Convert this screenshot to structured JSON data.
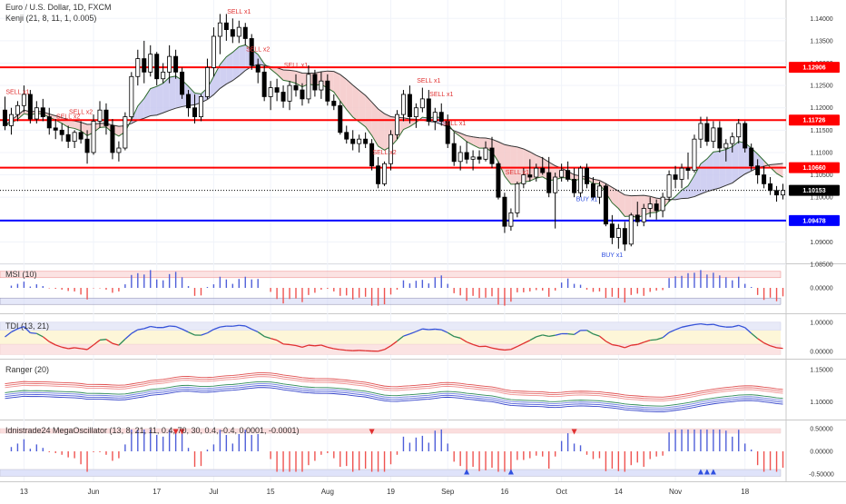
{
  "header": {
    "symbol_line": "Euro / U.S. Dollar, 1D, FXCM",
    "indicator_line": "Kenji (21, 8, 11, 1, 0.005)"
  },
  "panes": {
    "msi_title": "MSI (10)",
    "tdi_title": "TDI (13, 21)",
    "ranger_title": "Ranger (20)",
    "mega_title": "Idnistrade24 MegaOscillator (13, 8, 21, 11, 0.4, 70, 30, 0.4, -0.4, 0.0001, -0.0001)"
  },
  "colors": {
    "up_candle": "#ffffff",
    "down_candle": "#000000",
    "resistance": "#ff0000",
    "support": "#0000ff",
    "bull_cloud": "#c8c8f0",
    "bear_cloud": "#f5c8c8",
    "signal_text": "#e03030",
    "osc_pos": "#4f5fd9",
    "osc_neg": "#ef5350"
  },
  "chart_data": [
    {
      "type": "candlestick",
      "name": "EURUSD 1D",
      "x_labels": [
        "13",
        "Jun",
        "17",
        "Jul",
        "15",
        "Aug",
        "19",
        "Sep",
        "16",
        "Oct",
        "14",
        "Nov",
        "18"
      ],
      "y_ticks": [
        "1.14000",
        "1.13500",
        "1.13000",
        "1.12500",
        "1.12000",
        "1.11500",
        "1.11000",
        "1.10500",
        "1.10000",
        "1.09500",
        "1.09000",
        "1.08500"
      ],
      "ylim": [
        1.0852,
        1.1425
      ],
      "ohlc": [
        [
          1.1195,
          1.1225,
          1.115,
          1.116
        ],
        [
          1.116,
          1.12,
          1.114,
          1.1185
        ],
        [
          1.1185,
          1.1215,
          1.117,
          1.1205
        ],
        [
          1.1205,
          1.125,
          1.119,
          1.123
        ],
        [
          1.123,
          1.124,
          1.1165,
          1.1175
        ],
        [
          1.1175,
          1.1215,
          1.1165,
          1.12
        ],
        [
          1.12,
          1.122,
          1.117,
          1.118
        ],
        [
          1.118,
          1.12,
          1.114,
          1.1155
        ],
        [
          1.1155,
          1.1175,
          1.113,
          1.115
        ],
        [
          1.115,
          1.1165,
          1.1125,
          1.114
        ],
        [
          1.114,
          1.116,
          1.111,
          1.1125
        ],
        [
          1.1125,
          1.115,
          1.111,
          1.1145
        ],
        [
          1.1145,
          1.117,
          1.112,
          1.113
        ],
        [
          1.113,
          1.115,
          1.1075,
          1.11
        ],
        [
          1.11,
          1.1185,
          1.1095,
          1.117
        ],
        [
          1.117,
          1.1215,
          1.1155,
          1.1195
        ],
        [
          1.1195,
          1.121,
          1.114,
          1.116
        ],
        [
          1.116,
          1.1175,
          1.1085,
          1.11
        ],
        [
          1.11,
          1.1125,
          1.108,
          1.111
        ],
        [
          1.111,
          1.119,
          1.1105,
          1.118
        ],
        [
          1.118,
          1.128,
          1.117,
          1.127
        ],
        [
          1.127,
          1.133,
          1.125,
          1.131
        ],
        [
          1.131,
          1.135,
          1.1255,
          1.128
        ],
        [
          1.128,
          1.134,
          1.127,
          1.132
        ],
        [
          1.132,
          1.1325,
          1.125,
          1.1265
        ],
        [
          1.1265,
          1.13,
          1.1255,
          1.128
        ],
        [
          1.128,
          1.134,
          1.1255,
          1.1315
        ],
        [
          1.1315,
          1.133,
          1.1265,
          1.128
        ],
        [
          1.128,
          1.129,
          1.122,
          1.123
        ],
        [
          1.123,
          1.124,
          1.118,
          1.12
        ],
        [
          1.12,
          1.123,
          1.1165,
          1.118
        ],
        [
          1.118,
          1.123,
          1.117,
          1.1225
        ],
        [
          1.1225,
          1.131,
          1.122,
          1.129
        ],
        [
          1.129,
          1.138,
          1.127,
          1.136
        ],
        [
          1.136,
          1.141,
          1.132,
          1.139
        ],
        [
          1.139,
          1.141,
          1.135,
          1.1375
        ],
        [
          1.1375,
          1.14,
          1.1345,
          1.136
        ],
        [
          1.136,
          1.1395,
          1.1345,
          1.138
        ],
        [
          1.138,
          1.139,
          1.134,
          1.1355
        ],
        [
          1.1355,
          1.1365,
          1.1285,
          1.1295
        ],
        [
          1.1295,
          1.131,
          1.1255,
          1.128
        ],
        [
          1.128,
          1.1295,
          1.1215,
          1.1225
        ],
        [
          1.1225,
          1.126,
          1.1195,
          1.1245
        ],
        [
          1.1245,
          1.1265,
          1.1215,
          1.1235
        ],
        [
          1.1235,
          1.125,
          1.12,
          1.1215
        ],
        [
          1.1215,
          1.126,
          1.1195,
          1.125
        ],
        [
          1.125,
          1.1275,
          1.1225,
          1.124
        ],
        [
          1.124,
          1.1255,
          1.1205,
          1.122
        ],
        [
          1.122,
          1.1295,
          1.121,
          1.1275
        ],
        [
          1.1275,
          1.1285,
          1.1225,
          1.124
        ],
        [
          1.124,
          1.128,
          1.122,
          1.126
        ],
        [
          1.126,
          1.1275,
          1.1205,
          1.1215
        ],
        [
          1.1215,
          1.123,
          1.1195,
          1.1205
        ],
        [
          1.1205,
          1.1215,
          1.114,
          1.1145
        ],
        [
          1.1145,
          1.116,
          1.112,
          1.113
        ],
        [
          1.113,
          1.115,
          1.1105,
          1.112
        ],
        [
          1.112,
          1.114,
          1.11,
          1.113
        ],
        [
          1.113,
          1.1145,
          1.111,
          1.112
        ],
        [
          1.112,
          1.113,
          1.106,
          1.107
        ],
        [
          1.107,
          1.109,
          1.102,
          1.103
        ],
        [
          1.103,
          1.108,
          1.1025,
          1.1075
        ],
        [
          1.1075,
          1.115,
          1.106,
          1.114
        ],
        [
          1.114,
          1.1195,
          1.113,
          1.1185
        ],
        [
          1.1185,
          1.124,
          1.117,
          1.123
        ],
        [
          1.123,
          1.125,
          1.1165,
          1.118
        ],
        [
          1.118,
          1.121,
          1.1155,
          1.12
        ],
        [
          1.12,
          1.1245,
          1.119,
          1.122
        ],
        [
          1.122,
          1.124,
          1.116,
          1.117
        ],
        [
          1.117,
          1.12,
          1.115,
          1.119
        ],
        [
          1.119,
          1.121,
          1.116,
          1.117
        ],
        [
          1.117,
          1.1185,
          1.111,
          1.112
        ],
        [
          1.112,
          1.1145,
          1.107,
          1.108
        ],
        [
          1.108,
          1.1115,
          1.106,
          1.11
        ],
        [
          1.11,
          1.1125,
          1.1075,
          1.1085
        ],
        [
          1.1085,
          1.1105,
          1.106,
          1.109
        ],
        [
          1.109,
          1.1105,
          1.1075,
          1.1085
        ],
        [
          1.1085,
          1.1125,
          1.108,
          1.111
        ],
        [
          1.111,
          1.1135,
          1.1065,
          1.1075
        ],
        [
          1.1075,
          1.108,
          1.0995,
          1.1
        ],
        [
          1.1,
          1.101,
          1.092,
          1.0935
        ],
        [
          1.0935,
          1.0975,
          1.0925,
          1.0965
        ],
        [
          1.0965,
          1.1035,
          1.0955,
          1.103
        ],
        [
          1.103,
          1.1065,
          1.102,
          1.105
        ],
        [
          1.105,
          1.1085,
          1.1035,
          1.1045
        ],
        [
          1.1045,
          1.1075,
          1.1035,
          1.1065
        ],
        [
          1.1065,
          1.109,
          1.105,
          1.1055
        ],
        [
          1.1055,
          1.109,
          1.1,
          1.101
        ],
        [
          1.101,
          1.1055,
          1.093,
          1.1045
        ],
        [
          1.1045,
          1.1075,
          1.1035,
          1.106
        ],
        [
          1.106,
          1.108,
          1.1035,
          1.104
        ],
        [
          1.104,
          1.1065,
          1.1,
          1.101
        ],
        [
          1.101,
          1.107,
          1.1,
          1.1065
        ],
        [
          1.1065,
          1.1075,
          1.102,
          1.103
        ],
        [
          1.103,
          1.1045,
          1.0995,
          1.1
        ],
        [
          1.1,
          1.1035,
          1.0985,
          1.1025
        ],
        [
          1.1025,
          1.103,
          1.0935,
          1.094
        ],
        [
          1.094,
          1.096,
          1.0895,
          1.091
        ],
        [
          1.091,
          1.094,
          1.0885,
          1.093
        ],
        [
          1.093,
          1.0945,
          1.088,
          1.0895
        ],
        [
          1.0895,
          1.0965,
          1.089,
          1.096
        ],
        [
          1.096,
          1.099,
          1.0935,
          1.0945
        ],
        [
          1.0945,
          1.0985,
          1.0935,
          1.0975
        ],
        [
          1.0975,
          1.1,
          1.0955,
          1.0985
        ],
        [
          1.0985,
          1.0995,
          1.095,
          1.097
        ],
        [
          1.097,
          1.101,
          1.0955,
          1.1
        ],
        [
          1.1,
          1.106,
          1.099,
          1.105
        ],
        [
          1.105,
          1.107,
          1.102,
          1.104
        ],
        [
          1.104,
          1.1075,
          1.102,
          1.1065
        ],
        [
          1.1065,
          1.11,
          1.104,
          1.106
        ],
        [
          1.106,
          1.114,
          1.1055,
          1.113
        ],
        [
          1.113,
          1.118,
          1.111,
          1.1165
        ],
        [
          1.1165,
          1.118,
          1.1115,
          1.1125
        ],
        [
          1.1125,
          1.117,
          1.111,
          1.1155
        ],
        [
          1.1155,
          1.117,
          1.11,
          1.111
        ],
        [
          1.111,
          1.113,
          1.108,
          1.112
        ],
        [
          1.112,
          1.1145,
          1.11,
          1.1135
        ],
        [
          1.1135,
          1.1175,
          1.112,
          1.1165
        ],
        [
          1.1165,
          1.117,
          1.11,
          1.111
        ],
        [
          1.111,
          1.112,
          1.106,
          1.107
        ],
        [
          1.107,
          1.1085,
          1.103,
          1.105
        ],
        [
          1.105,
          1.107,
          1.102,
          1.103
        ],
        [
          1.103,
          1.1045,
          1.1005,
          1.1015
        ],
        [
          1.1015,
          1.1025,
          1.099,
          1.1005
        ],
        [
          1.1005,
          1.103,
          1.0995,
          1.1015
        ]
      ],
      "levels": [
        {
          "label": "1.12906",
          "value": 1.12906,
          "color": "#ff0000"
        },
        {
          "label": "1.11726",
          "value": 1.11726,
          "color": "#ff0000"
        },
        {
          "label": "1.10660",
          "value": 1.1066,
          "color": "#ff0000"
        },
        {
          "label": "1.10153",
          "value": 1.10153,
          "color": "#000000"
        },
        {
          "label": "1.09478",
          "value": 1.09478,
          "color": "#0000ff"
        }
      ],
      "signals": [
        {
          "text": "SELL x1",
          "bar": 2
        },
        {
          "text": "SELL x2",
          "bar": 10
        },
        {
          "text": "SELL x2",
          "bar": 12
        },
        {
          "text": "SELL x1",
          "bar": 37
        },
        {
          "text": "SELL x2",
          "bar": 40
        },
        {
          "text": "SELL x1",
          "bar": 46
        },
        {
          "text": "SELL x2",
          "bar": 60
        },
        {
          "text": "SELL x1",
          "bar": 67
        },
        {
          "text": "SELL x1",
          "bar": 69
        },
        {
          "text": "SELL x1",
          "bar": 71
        },
        {
          "text": "SELL x1",
          "bar": 81
        },
        {
          "text": "BUY x1",
          "bar": 92
        },
        {
          "text": "BUY x1",
          "bar": 96
        }
      ]
    },
    {
      "type": "bar",
      "name": "MSI (10)",
      "y_ticks": [
        "0.00000"
      ],
      "ylim": [
        -0.015,
        0.015
      ]
    },
    {
      "type": "line",
      "name": "TDI (13, 21)",
      "y_ticks": [
        "1.00000",
        "0.00000"
      ],
      "ylim": [
        -0.15,
        1.15
      ]
    },
    {
      "type": "line",
      "name": "Ranger (20)",
      "y_ticks": [
        "1.15000",
        "1.10000"
      ],
      "ylim": [
        1.075,
        1.16
      ]
    },
    {
      "type": "bar",
      "name": "Idnistrade24 MegaOscillator",
      "y_ticks": [
        "0.50000",
        "0.00000",
        "-0.50000"
      ],
      "ylim": [
        -0.62,
        0.62
      ]
    }
  ]
}
